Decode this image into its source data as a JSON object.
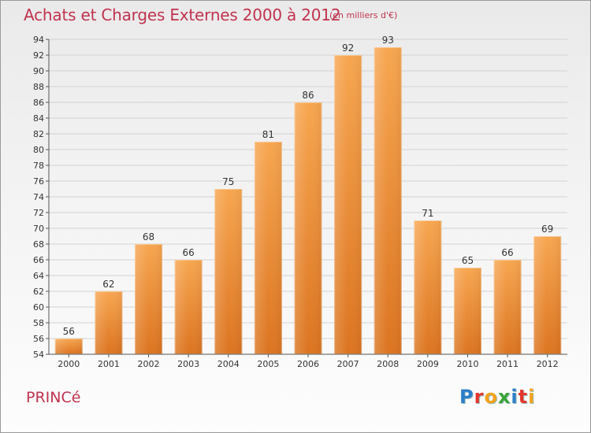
{
  "header": {
    "title": "Achats et Charges Externes 2000 à 2012",
    "subtitle": "(en milliers d'€)"
  },
  "footer": {
    "commune": "PRINCé",
    "logo_letters": [
      "P",
      "r",
      "o",
      "x",
      "i",
      "t",
      "i"
    ],
    "logo_colors": [
      "#2e7ec9",
      "#e2372e",
      "#f2a21c",
      "#3aa437",
      "#2e7ec9",
      "#e2372e",
      "#f2a21c"
    ]
  },
  "chart_data": {
    "type": "bar",
    "title": "Achats et Charges Externes 2000 à 2012",
    "subtitle": "(en milliers d'€)",
    "categories": [
      "2000",
      "2001",
      "2002",
      "2003",
      "2004",
      "2005",
      "2006",
      "2007",
      "2008",
      "2009",
      "2010",
      "2011",
      "2012"
    ],
    "values": [
      56,
      62,
      68,
      66,
      75,
      81,
      86,
      92,
      93,
      71,
      65,
      66,
      69
    ],
    "ylim": [
      54,
      94
    ],
    "yticks": [
      54,
      56,
      58,
      60,
      62,
      64,
      66,
      68,
      70,
      72,
      74,
      76,
      78,
      80,
      82,
      84,
      86,
      88,
      90,
      92,
      94
    ],
    "grid": "horizontal",
    "xlabel": "",
    "ylabel": "",
    "bar_color": "#f0923c"
  }
}
